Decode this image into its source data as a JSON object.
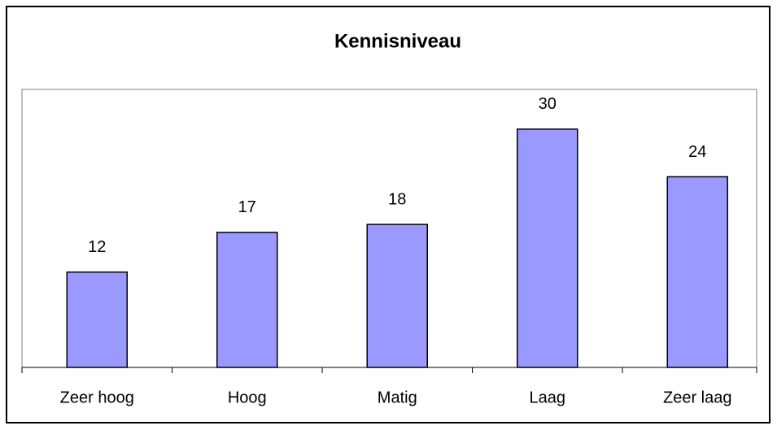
{
  "chart_data": {
    "type": "bar",
    "title": "Kennisniveau",
    "categories": [
      "Zeer hoog",
      "Hoog",
      "Matig",
      "Laag",
      "Zeer laag"
    ],
    "values": [
      12,
      17,
      18,
      30,
      24
    ],
    "color": "#9999ff",
    "ylim": [
      0,
      35
    ],
    "grid": false
  }
}
